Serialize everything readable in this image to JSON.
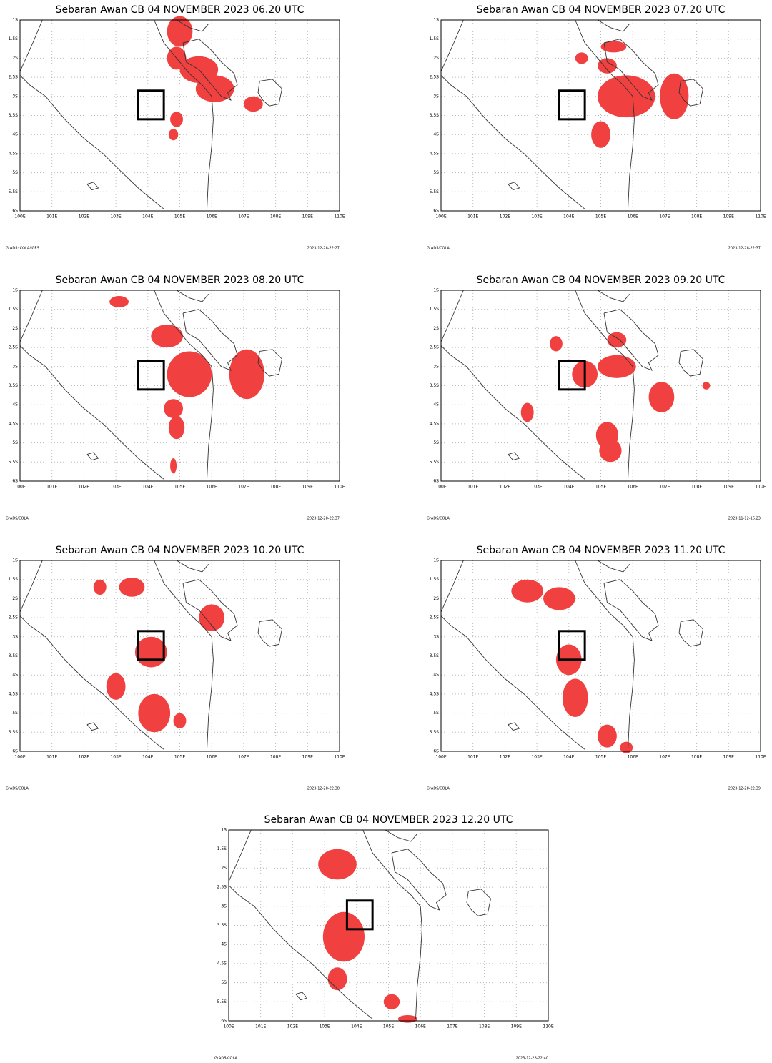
{
  "panels": [
    {
      "title": "Sebaran Awan CB 04 NOVEMBER 2023 06.20 UTC",
      "footer_left": "GrADS: COLA/IGES",
      "footer_right": "2023-12-28-22:27"
    },
    {
      "title": "Sebaran Awan CB 04 NOVEMBER 2023 07.20 UTC",
      "footer_left": "GrADS/COLA",
      "footer_right": "2023-12-28-22:37"
    },
    {
      "title": "Sebaran Awan CB 04 NOVEMBER 2023 08.20 UTC",
      "footer_left": "GrADS/COLA",
      "footer_right": "2023-12-28-22:37"
    },
    {
      "title": "Sebaran Awan CB 04 NOVEMBER 2023 09.20 UTC",
      "footer_left": "GrADS/COLA",
      "footer_right": "2023-11-12-16:23"
    },
    {
      "title": "Sebaran Awan CB 04 NOVEMBER 2023 10.20 UTC",
      "footer_left": "GrADS/COLA",
      "footer_right": "2023-12-28-22:38"
    },
    {
      "title": "Sebaran Awan CB 04 NOVEMBER 2023 11.20 UTC",
      "footer_left": "GrADS/COLA",
      "footer_right": "2023-12-28-22:39"
    },
    {
      "title": "Sebaran Awan CB 04 NOVEMBER 2023 12.20 UTC",
      "footer_left": "GrADS/COLA",
      "footer_right": "2023-12-28-22:40"
    }
  ],
  "axes": {
    "xticks": [
      "100E",
      "101E",
      "102E",
      "103E",
      "104E",
      "105E",
      "106E",
      "107E",
      "108E",
      "109E",
      "110E"
    ],
    "yticks": [
      "1S",
      "1.5S",
      "2S",
      "2.5S",
      "3S",
      "3.5S",
      "4S",
      "4.5S",
      "5S",
      "5.5S",
      "6S"
    ]
  }
}
